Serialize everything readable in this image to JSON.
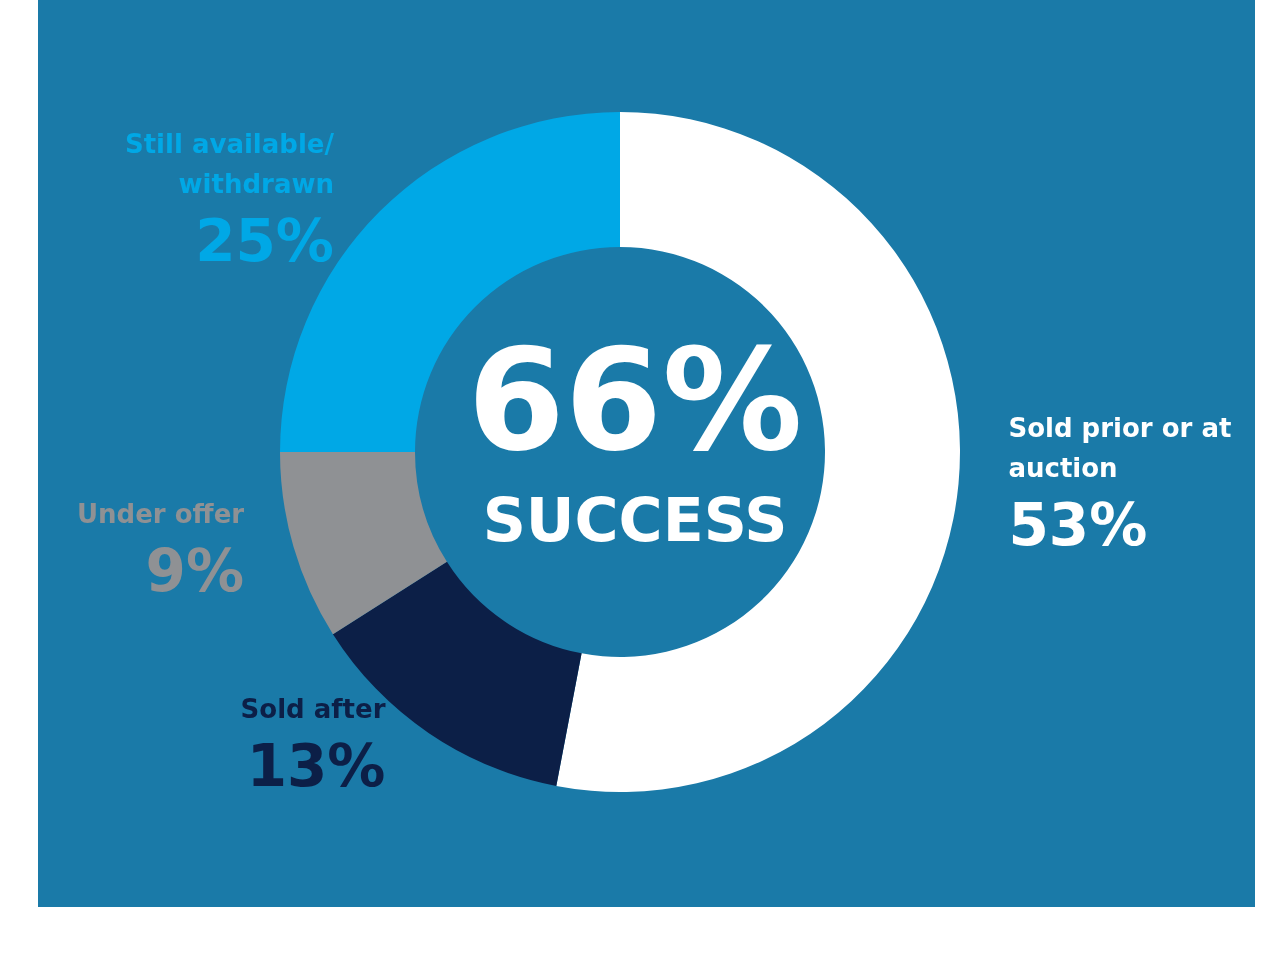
{
  "chart_data": {
    "type": "donut",
    "categories": [
      "Sold prior or at auction",
      "Sold after",
      "Under offer",
      "Still available/withdrawn"
    ],
    "values": [
      53,
      13,
      9,
      25
    ],
    "value_labels": [
      "53%",
      "13%",
      "9%",
      "25%"
    ],
    "colors": [
      "#ffffff",
      "#0c1f47",
      "#8f9194",
      "#00a8e6"
    ],
    "annotations": [
      "66%",
      "SUCCESS"
    ],
    "legend": false
  }
}
